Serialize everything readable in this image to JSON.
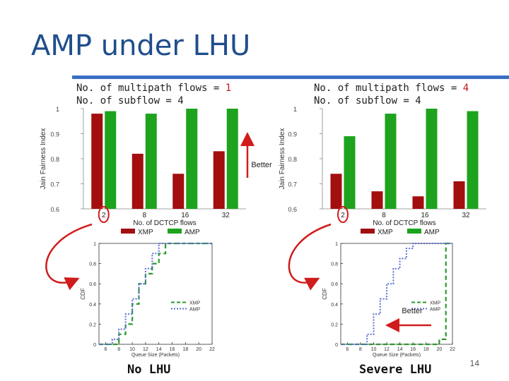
{
  "title": "AMP under LHU",
  "page_number": "14",
  "colors": {
    "xmp": "#a30e0e",
    "amp": "#1da31d",
    "arrow": "#d01c1c",
    "title": "#1f4e8c"
  },
  "bar_common": {
    "ylabel": "Jain Fairness Index",
    "xlabel": "No. of DCTCP flows",
    "categories": [
      "2",
      "8",
      "16",
      "32"
    ],
    "ytick_labels": [
      "1",
      "0.9",
      "0.8",
      "0.7",
      "0.6"
    ],
    "legend": [
      "XMP",
      "AMP"
    ]
  },
  "panels": [
    {
      "caption_line1_prefix": "No. of multipath flows = ",
      "caption_line1_value": "1",
      "caption_line2": "No. of subflow = 4",
      "bottom_label": "No LHU"
    },
    {
      "caption_line1_prefix": "No. of multipath flows = ",
      "caption_line1_value": "4",
      "caption_line2": "No. of subflow = 4",
      "bottom_label": "Severe LHU"
    }
  ],
  "better_up_label": "Better",
  "better_left_label": "Better",
  "cdf_common": {
    "ylabel": "CDF",
    "xlabel": "Queue Size (Packets)",
    "xtick_labels": [
      "6",
      "8",
      "10",
      "12",
      "14",
      "16",
      "18",
      "20",
      "22"
    ],
    "ytick_labels": [
      "0",
      "0.2",
      "0.4",
      "0.6",
      "0.8",
      "1"
    ],
    "legend": [
      "XMP",
      "AMP"
    ]
  },
  "chart_data": [
    {
      "type": "bar",
      "categories": [
        "2",
        "8",
        "16",
        "32"
      ],
      "ylim": [
        0.6,
        1.0
      ],
      "series": [
        {
          "name": "XMP",
          "values": [
            0.98,
            0.82,
            0.74,
            0.83
          ]
        },
        {
          "name": "AMP",
          "values": [
            0.99,
            0.98,
            1.0,
            1.0
          ]
        }
      ],
      "xlabel": "No. of DCTCP flows",
      "ylabel": "Jain Fairness Index",
      "legend_position": "bottom"
    },
    {
      "type": "bar",
      "categories": [
        "2",
        "8",
        "16",
        "32"
      ],
      "ylim": [
        0.6,
        1.0
      ],
      "series": [
        {
          "name": "XMP",
          "values": [
            0.74,
            0.67,
            0.65,
            0.71
          ]
        },
        {
          "name": "AMP",
          "values": [
            0.89,
            0.98,
            1.0,
            0.99
          ]
        }
      ],
      "xlabel": "No. of DCTCP flows",
      "ylabel": "Jain Fairness Index",
      "legend_position": "bottom"
    },
    {
      "type": "line",
      "xlim": [
        5,
        22
      ],
      "ylim": [
        0,
        1
      ],
      "series": [
        {
          "name": "XMP",
          "x": [
            5,
            8,
            8,
            9,
            9,
            10,
            10,
            11,
            11,
            12,
            12,
            13,
            13,
            14,
            14,
            15,
            15,
            22
          ],
          "y": [
            0,
            0,
            0.1,
            0.1,
            0.2,
            0.2,
            0.4,
            0.4,
            0.6,
            0.6,
            0.7,
            0.7,
            0.8,
            0.8,
            0.9,
            0.9,
            1.0,
            1.0
          ]
        },
        {
          "name": "AMP",
          "x": [
            5,
            7,
            7,
            8,
            8,
            9,
            9,
            10,
            10,
            11,
            11,
            12,
            12,
            13,
            13,
            14,
            14,
            22
          ],
          "y": [
            0,
            0,
            0.05,
            0.05,
            0.15,
            0.15,
            0.3,
            0.3,
            0.45,
            0.45,
            0.6,
            0.6,
            0.75,
            0.75,
            0.9,
            0.9,
            1.0,
            1.0
          ]
        }
      ],
      "xlabel": "Queue Size (Packets)",
      "ylabel": "CDF",
      "legend_position": "center-right"
    },
    {
      "type": "line",
      "xlim": [
        5,
        22
      ],
      "ylim": [
        0,
        1
      ],
      "series": [
        {
          "name": "XMP",
          "x": [
            5,
            20,
            20,
            21,
            21,
            22
          ],
          "y": [
            0,
            0,
            0.05,
            0.05,
            1.0,
            1.0
          ]
        },
        {
          "name": "AMP",
          "x": [
            5,
            9,
            9,
            10,
            10,
            11,
            11,
            12,
            12,
            13,
            13,
            14,
            14,
            15,
            15,
            16,
            16,
            22
          ],
          "y": [
            0,
            0,
            0.1,
            0.1,
            0.3,
            0.3,
            0.45,
            0.45,
            0.6,
            0.6,
            0.75,
            0.75,
            0.85,
            0.85,
            0.95,
            0.95,
            1.0,
            1.0
          ]
        }
      ],
      "xlabel": "Queue Size (Packets)",
      "ylabel": "CDF",
      "legend_position": "center-right"
    }
  ]
}
